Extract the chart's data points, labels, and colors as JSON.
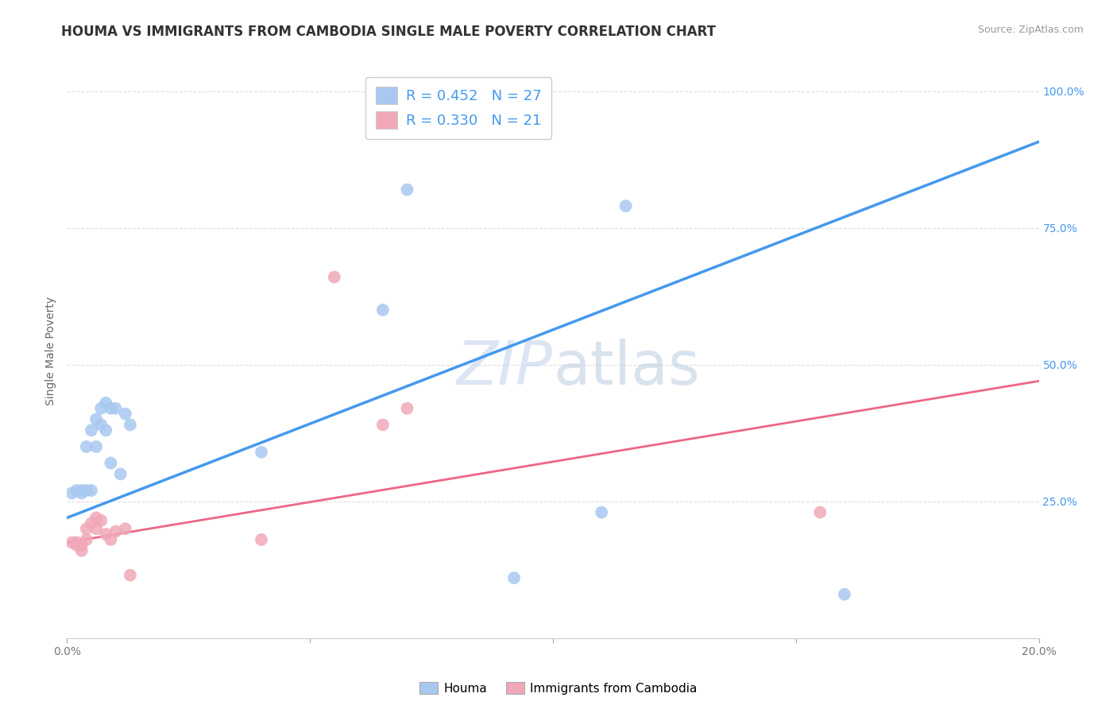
{
  "title": "HOUMA VS IMMIGRANTS FROM CAMBODIA SINGLE MALE POVERTY CORRELATION CHART",
  "source": "Source: ZipAtlas.com",
  "ylabel": "Single Male Poverty",
  "xlim": [
    0.0,
    0.2
  ],
  "ylim": [
    0.0,
    1.05
  ],
  "yticks": [
    0.25,
    0.5,
    0.75,
    1.0
  ],
  "ytick_labels": [
    "25.0%",
    "50.0%",
    "75.0%",
    "100.0%"
  ],
  "xticks": [
    0.0,
    0.05,
    0.1,
    0.15,
    0.2
  ],
  "xtick_labels": [
    "0.0%",
    "",
    "",
    "",
    "20.0%"
  ],
  "houma_R": 0.452,
  "houma_N": 27,
  "cambodia_R": 0.33,
  "cambodia_N": 21,
  "houma_color": "#a8c8f0",
  "cambodia_color": "#f0a8b8",
  "houma_line_color": "#4499ee",
  "cambodia_line_color": "#ee6688",
  "dashed_line_color": "#bbbbbb",
  "background_color": "#ffffff",
  "grid_color": "#dddddd",
  "watermark_zip": "ZIP",
  "watermark_atlas": "atlas",
  "houma_x": [
    0.001,
    0.002,
    0.003,
    0.003,
    0.004,
    0.004,
    0.005,
    0.005,
    0.006,
    0.006,
    0.007,
    0.007,
    0.008,
    0.008,
    0.009,
    0.009,
    0.01,
    0.011,
    0.012,
    0.013,
    0.04,
    0.065,
    0.07,
    0.092,
    0.11,
    0.115,
    0.16
  ],
  "houma_y": [
    0.265,
    0.27,
    0.265,
    0.27,
    0.27,
    0.35,
    0.27,
    0.38,
    0.35,
    0.4,
    0.39,
    0.42,
    0.38,
    0.43,
    0.32,
    0.42,
    0.42,
    0.3,
    0.41,
    0.39,
    0.34,
    0.6,
    0.82,
    0.11,
    0.23,
    0.79,
    0.08
  ],
  "cambodia_x": [
    0.001,
    0.002,
    0.002,
    0.003,
    0.003,
    0.004,
    0.004,
    0.005,
    0.006,
    0.006,
    0.007,
    0.008,
    0.009,
    0.01,
    0.012,
    0.013,
    0.04,
    0.055,
    0.065,
    0.07,
    0.155
  ],
  "cambodia_y": [
    0.175,
    0.17,
    0.175,
    0.16,
    0.17,
    0.2,
    0.18,
    0.21,
    0.2,
    0.22,
    0.215,
    0.19,
    0.18,
    0.195,
    0.2,
    0.115,
    0.18,
    0.66,
    0.39,
    0.42,
    0.23
  ],
  "title_fontsize": 12,
  "axis_label_fontsize": 10,
  "tick_fontsize": 10,
  "legend_fontsize": 13,
  "right_tick_color": "#4499ee"
}
